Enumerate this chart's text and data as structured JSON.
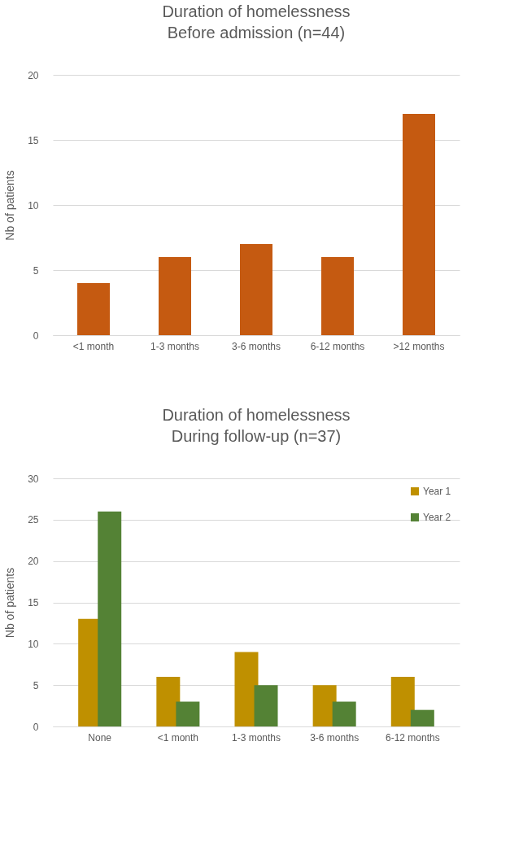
{
  "chart_data": [
    {
      "type": "bar",
      "title": "Duration of homelessness",
      "subtitle": "Before admission (n=44)",
      "ylabel": "Nb of patients",
      "categories": [
        "<1 month",
        "1-3 months",
        "3-6 months",
        "6-12 months",
        ">12 months"
      ],
      "series": [
        {
          "color": "#c55a11",
          "values": [
            4,
            6,
            7,
            6,
            17
          ]
        }
      ],
      "ylim": [
        0,
        20
      ],
      "yticks": [
        0,
        5,
        10,
        15,
        20
      ],
      "grid": "y"
    },
    {
      "type": "bar",
      "title": "Duration of homelessness",
      "subtitle": "During follow-up (n=37)",
      "ylabel": "Nb of patients",
      "categories": [
        "None",
        "<1 month",
        "1-3 months",
        "3-6 months",
        "6-12 months"
      ],
      "series": [
        {
          "name": "Year 1",
          "color": "#bf9000",
          "values": [
            13,
            6,
            9,
            5,
            6
          ]
        },
        {
          "name": "Year 2",
          "color": "#548235",
          "values": [
            26,
            3,
            5,
            3,
            2
          ]
        }
      ],
      "ylim": [
        0,
        30
      ],
      "yticks": [
        0,
        5,
        10,
        15,
        20,
        25,
        30
      ],
      "grid": "y",
      "legend": "top right"
    }
  ]
}
